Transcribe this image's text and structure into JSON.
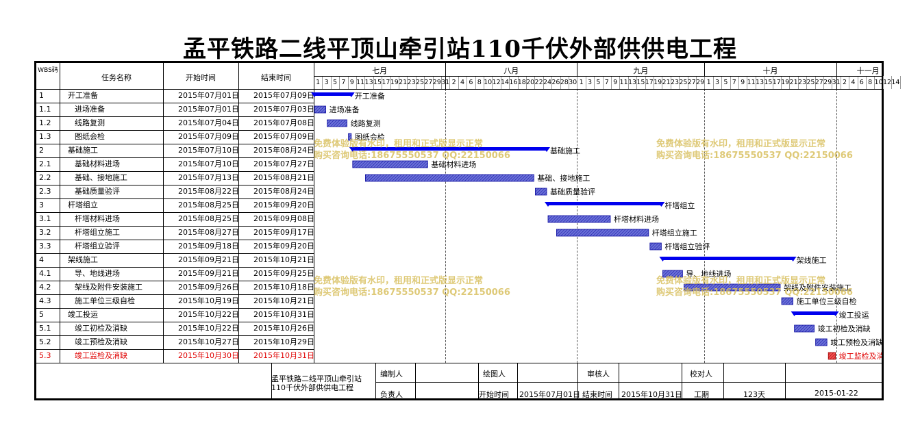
{
  "title": "孟平铁路二线平顶山牵引站110千伏外部供供电工程",
  "header": {
    "wbs": "WBS码",
    "name": "任务名称",
    "start": "开始时间",
    "end": "结束时间"
  },
  "months": [
    "七月",
    "八月",
    "九月",
    "十月",
    "十一月"
  ],
  "day_ticks": {
    "jul": [
      "1",
      "3",
      "5",
      "7",
      "9",
      "11",
      "13",
      "15",
      "17",
      "19",
      "21",
      "23",
      "25",
      "27",
      "29",
      "31"
    ],
    "aug": [
      "2",
      "4",
      "6",
      "8",
      "10",
      "12",
      "14",
      "16",
      "18",
      "20",
      "22",
      "24",
      "26",
      "28",
      "30"
    ],
    "sep": [
      "1",
      "3",
      "5",
      "7",
      "9",
      "11",
      "13",
      "15",
      "17",
      "19",
      "21",
      "23",
      "25",
      "27",
      "29"
    ],
    "oct": [
      "1",
      "3",
      "5",
      "7",
      "9",
      "11",
      "13",
      "15",
      "17",
      "19",
      "21",
      "23",
      "25",
      "27",
      "29",
      "31"
    ],
    "nov": [
      "2",
      "4",
      "6",
      "8",
      "10",
      "12",
      "14"
    ]
  },
  "chart_data": {
    "type": "gantt",
    "title": "孟平铁路二线平顶山牵引站110千伏外部供供电工程",
    "x_axis": {
      "start": "2015-07-01",
      "end": "2015-11-15",
      "unit": "day"
    },
    "tasks": [
      {
        "wbs": "1",
        "name": "开工准备",
        "start": "2015年07月01日",
        "end": "2015年07月09日",
        "bar": "开工准备",
        "level": 0
      },
      {
        "wbs": "1.1",
        "name": "进场准备",
        "start": "2015年07月01日",
        "end": "2015年07月03日",
        "bar": "进场准备",
        "level": 1
      },
      {
        "wbs": "1.2",
        "name": "线路复测",
        "start": "2015年07月04日",
        "end": "2015年07月08日",
        "bar": "线路复测",
        "level": 1
      },
      {
        "wbs": "1.3",
        "name": "图纸会检",
        "start": "2015年07月09日",
        "end": "2015年07月09日",
        "bar": "图纸会检",
        "level": 1
      },
      {
        "wbs": "2",
        "name": "基础施工",
        "start": "2015年07月10日",
        "end": "2015年08月24日",
        "bar": "基础施工",
        "level": 0
      },
      {
        "wbs": "2.1",
        "name": "基础材料进场",
        "start": "2015年07月10日",
        "end": "2015年07月27日",
        "bar": "基础材料进场",
        "level": 1
      },
      {
        "wbs": "2.2",
        "name": "基础、接地施工",
        "start": "2015年07月13日",
        "end": "2015年08月21日",
        "bar": "基础、接地施工",
        "level": 1
      },
      {
        "wbs": "2.3",
        "name": "基础质量验评",
        "start": "2015年08月22日",
        "end": "2015年08月24日",
        "bar": "基础质量验评",
        "level": 1
      },
      {
        "wbs": "3",
        "name": "杆塔组立",
        "start": "2015年08月25日",
        "end": "2015年09月20日",
        "bar": "杆塔组立",
        "level": 0
      },
      {
        "wbs": "3.1",
        "name": "杆塔材料进场",
        "start": "2015年08月25日",
        "end": "2015年09月08日",
        "bar": "杆塔材料进场",
        "level": 1
      },
      {
        "wbs": "3.2",
        "name": "杆塔组立施工",
        "start": "2015年08月27日",
        "end": "2015年09月17日",
        "bar": "杆塔组立施工",
        "level": 1
      },
      {
        "wbs": "3.3",
        "name": "杆塔组立验评",
        "start": "2015年09月18日",
        "end": "2015年09月20日",
        "bar": "杆塔组立验评",
        "level": 1
      },
      {
        "wbs": "4",
        "name": "架线施工",
        "start": "2015年09月21日",
        "end": "2015年10月21日",
        "bar": "架线施工",
        "level": 0
      },
      {
        "wbs": "4.1",
        "name": "导、地线进场",
        "start": "2015年09月21日",
        "end": "2015年09月25日",
        "bar": "导、地线进场",
        "level": 1
      },
      {
        "wbs": "4.2",
        "name": "架线及附件安装施工",
        "start": "2015年09月26日",
        "end": "2015年10月18日",
        "bar": "架线及附件安装施工",
        "level": 1
      },
      {
        "wbs": "4.3",
        "name": "施工单位三级自检",
        "start": "2015年10月19日",
        "end": "2015年10月21日",
        "bar": "施工单位三级自检",
        "level": 1
      },
      {
        "wbs": "5",
        "name": "竣工投运",
        "start": "2015年10月22日",
        "end": "2015年10月31日",
        "bar": "竣工投运",
        "level": 0
      },
      {
        "wbs": "5.1",
        "name": "竣工初检及消缺",
        "start": "2015年10月22日",
        "end": "2015年10月26日",
        "bar": "竣工初检及消缺",
        "level": 1
      },
      {
        "wbs": "5.2",
        "name": "竣工预检及消缺",
        "start": "2015年10月27日",
        "end": "2015年10月29日",
        "bar": "竣工预检及消缺",
        "level": 1
      },
      {
        "wbs": "5.3",
        "name": "竣工监检及消缺",
        "start": "2015年10月30日",
        "end": "2015年10月31日",
        "bar": "竣工监检及消缺",
        "level": 1,
        "critical": true
      }
    ]
  },
  "watermark": {
    "line1": "免费体验版有水印，租用和正式版显示正常",
    "line2": "购买咨询电话:18675550537 QQ:22150066"
  },
  "footer": {
    "project": "孟平铁路二线平顶山牵引站110千伏外部供供电工程",
    "editor_label": "编制人",
    "drawer_label": "绘图人",
    "reviewer_label": "审核人",
    "checker_label": "校对人",
    "owner_label": "负责人",
    "start_label": "开始时间",
    "start_value": "2015年07月01日",
    "end_label": "结束时间",
    "end_value": "2015年10月31日",
    "duration_label": "工期",
    "duration_value": "123天",
    "date_value": "2015-01-22"
  },
  "colors": {
    "summary": "#0000ee",
    "task_fill": "#6a70d8",
    "task_border": "#1010a0",
    "critical": "#e00000",
    "watermark": "#d9c060"
  }
}
